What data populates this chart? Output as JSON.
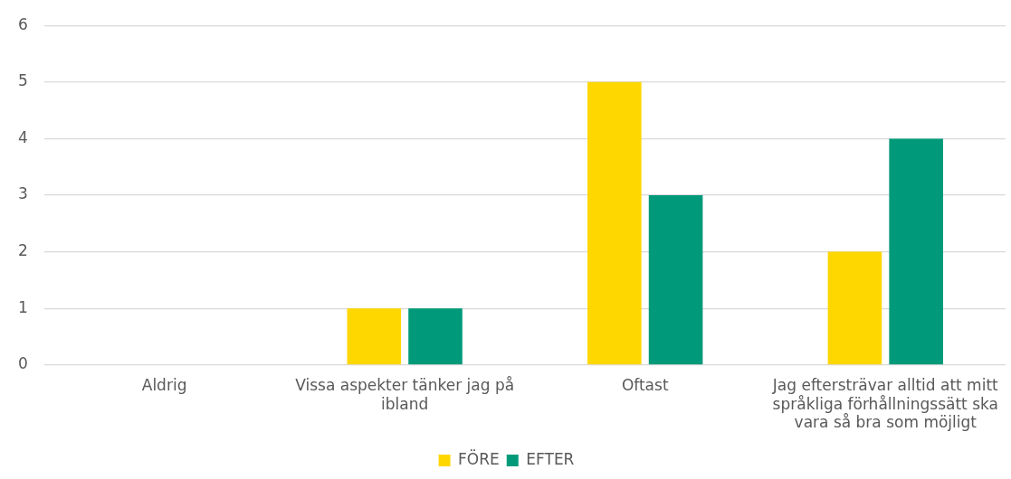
{
  "chart_data": {
    "type": "bar",
    "categories": [
      "Aldrig",
      "Vissa aspekter tänker jag på ibland",
      "Oftast",
      "Jag eftersträvar alltid att mitt språkliga förhållningssätt ska vara så bra som möjligt"
    ],
    "series": [
      {
        "name": "FÖRE",
        "color": "#ffd700",
        "values": [
          0,
          1,
          5,
          2
        ]
      },
      {
        "name": "EFTER",
        "color": "#009a7a",
        "values": [
          0,
          1,
          3,
          4
        ]
      }
    ],
    "ylim": [
      0,
      6
    ],
    "yticks": [
      0,
      1,
      2,
      3,
      4,
      5,
      6
    ],
    "grid": "y",
    "legend": "bottom"
  }
}
